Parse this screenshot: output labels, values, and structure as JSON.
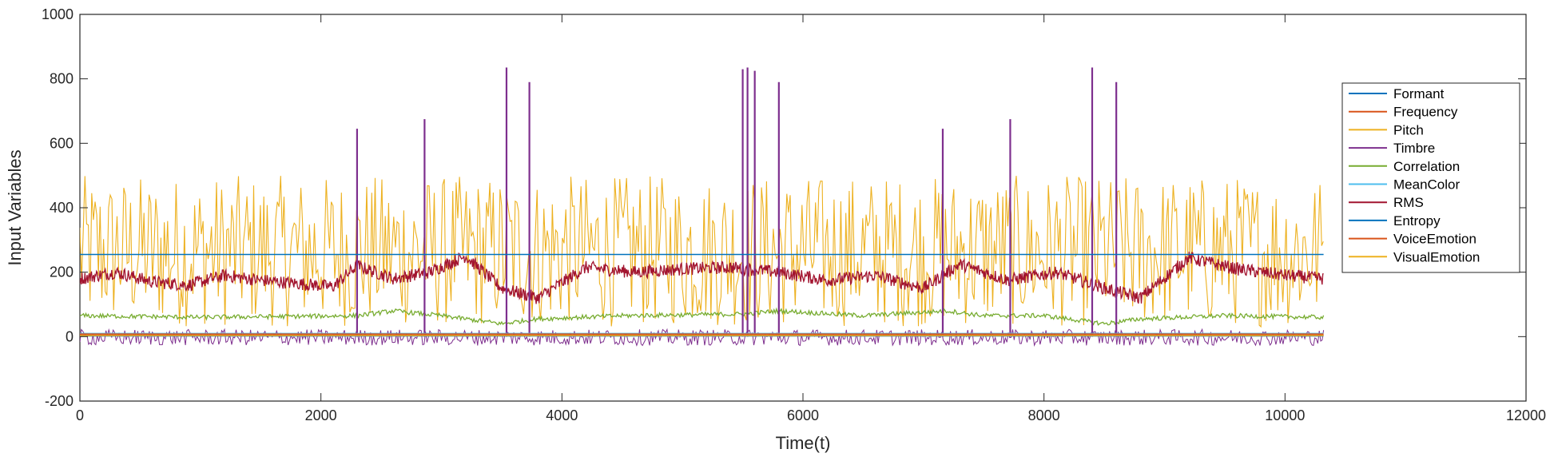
{
  "chart_data": {
    "type": "line",
    "title": "",
    "xlabel": "Time(t)",
    "ylabel": "Input Variables",
    "xlim": [
      0,
      12000
    ],
    "ylim": [
      -200,
      1000
    ],
    "xticks": [
      0,
      2000,
      4000,
      6000,
      8000,
      10000,
      12000
    ],
    "yticks": [
      -200,
      0,
      200,
      400,
      600,
      800,
      1000
    ],
    "xtick_labels": [
      "0",
      "2000",
      "4000",
      "6000",
      "8000",
      "10000",
      "12000"
    ],
    "ytick_labels": [
      "-200",
      "0",
      "200",
      "400",
      "600",
      "800",
      "1000"
    ],
    "grid": false,
    "legend_position": "right",
    "series": [
      {
        "name": "Formant",
        "color": "#0072BD",
        "x": [
          0,
          10320
        ],
        "values": [
          255,
          255
        ]
      },
      {
        "name": "Frequency",
        "color": "#D95319",
        "x": [
          0,
          10320
        ],
        "values": [
          5,
          5
        ]
      },
      {
        "name": "Pitch",
        "color": "#EDB120",
        "x": [
          0,
          10320
        ],
        "values": [
          250,
          250
        ],
        "band": [
          30,
          500
        ]
      },
      {
        "name": "Timbre",
        "color": "#7E2F8E",
        "x": [
          0,
          1000,
          2000,
          2300,
          2860,
          3000,
          3540,
          3560,
          3730,
          4000,
          5000,
          5500,
          5540,
          5600,
          5800,
          6000,
          7000,
          7160,
          7720,
          8000,
          8400,
          8420,
          8600,
          9000,
          10000,
          10320
        ],
        "values": [
          0,
          -10,
          0,
          645,
          675,
          0,
          835,
          0,
          790,
          -10,
          0,
          830,
          835,
          825,
          790,
          0,
          -5,
          645,
          675,
          0,
          835,
          0,
          790,
          0,
          -10,
          0
        ]
      },
      {
        "name": "Correlation",
        "color": "#77AC30",
        "x": [
          0,
          1000,
          2300,
          2600,
          3000,
          3500,
          3800,
          4500,
          5500,
          5800,
          6500,
          7200,
          7500,
          8000,
          8500,
          8800,
          9500,
          10320
        ],
        "values": [
          65,
          60,
          65,
          80,
          65,
          40,
          55,
          65,
          70,
          80,
          65,
          80,
          65,
          65,
          40,
          55,
          65,
          60
        ]
      },
      {
        "name": "MeanColor",
        "color": "#4DBEEE",
        "x": [
          0,
          10320
        ],
        "values": [
          10,
          10
        ]
      },
      {
        "name": "RMS",
        "color": "#A2142F",
        "x": [
          0,
          300,
          600,
          900,
          1200,
          1500,
          1800,
          2100,
          2300,
          2600,
          2900,
          3200,
          3500,
          3800,
          4200,
          4600,
          5000,
          5400,
          5800,
          6200,
          6600,
          7000,
          7300,
          7700,
          8100,
          8500,
          8800,
          9200,
          9600,
          10000,
          10320
        ],
        "values": [
          180,
          200,
          170,
          160,
          190,
          175,
          165,
          155,
          220,
          180,
          200,
          250,
          150,
          120,
          215,
          200,
          210,
          215,
          200,
          175,
          190,
          150,
          225,
          175,
          200,
          150,
          120,
          245,
          210,
          190,
          180
        ]
      },
      {
        "name": "Entropy",
        "color": "#0072BD",
        "x": [
          0,
          10320
        ],
        "values": [
          2,
          2
        ]
      },
      {
        "name": "VoiceEmotion",
        "color": "#D95319",
        "x": [
          0,
          10320
        ],
        "values": [
          8,
          8
        ]
      },
      {
        "name": "VisualEmotion",
        "color": "#EDB120",
        "x": [
          0,
          10320
        ],
        "values": [
          3,
          3
        ]
      }
    ]
  }
}
